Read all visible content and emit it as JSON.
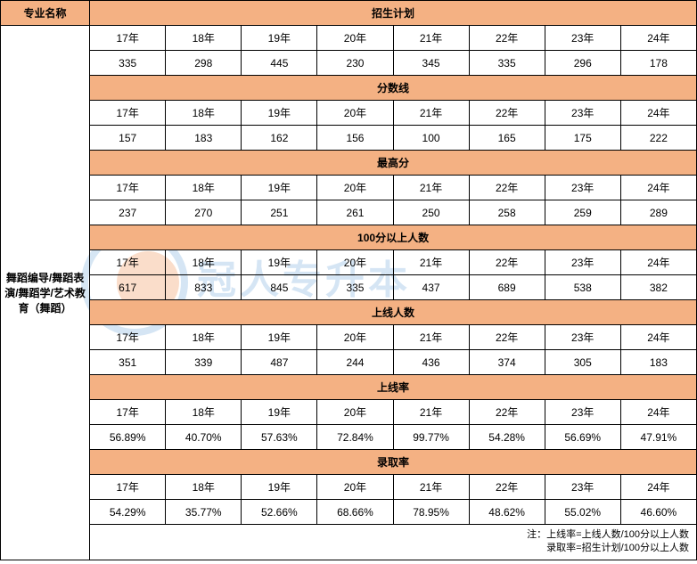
{
  "header": {
    "major_label": "专业名称",
    "major_name": "舞蹈编导/舞蹈表演/舞蹈学/艺术教育（舞蹈）"
  },
  "years": [
    "17年",
    "18年",
    "19年",
    "20年",
    "21年",
    "22年",
    "23年",
    "24年"
  ],
  "sections": [
    {
      "title": "招生计划",
      "values": [
        "335",
        "298",
        "445",
        "230",
        "345",
        "335",
        "296",
        "178"
      ]
    },
    {
      "title": "分数线",
      "values": [
        "157",
        "183",
        "162",
        "156",
        "100",
        "165",
        "175",
        "222"
      ]
    },
    {
      "title": "最高分",
      "values": [
        "237",
        "270",
        "251",
        "261",
        "250",
        "258",
        "259",
        "289"
      ]
    },
    {
      "title": "100分以上人数",
      "values": [
        "617",
        "833",
        "845",
        "335",
        "437",
        "689",
        "538",
        "382"
      ]
    },
    {
      "title": "上线人数",
      "values": [
        "351",
        "339",
        "487",
        "244",
        "436",
        "374",
        "305",
        "183"
      ]
    },
    {
      "title": "上线率",
      "values": [
        "56.89%",
        "40.70%",
        "57.63%",
        "72.84%",
        "99.77%",
        "54.28%",
        "56.69%",
        "47.91%"
      ]
    },
    {
      "title": "录取率",
      "values": [
        "54.29%",
        "35.77%",
        "52.66%",
        "68.66%",
        "78.95%",
        "48.62%",
        "55.02%",
        "46.60%"
      ]
    }
  ],
  "footer": {
    "line1": "注：上线率=上线人数/100分以上人数",
    "line2": "录取率=招生计划/100分以上人数"
  },
  "watermark": {
    "title": "冠人专升本",
    "subtitle": "GUANREN ZHUANSHENGBEN"
  },
  "colors": {
    "header_bg": "#f4b183",
    "border": "#000000",
    "text": "#000000",
    "wm_blue": "#5b9bd5",
    "wm_orange": "#ed7d31"
  }
}
